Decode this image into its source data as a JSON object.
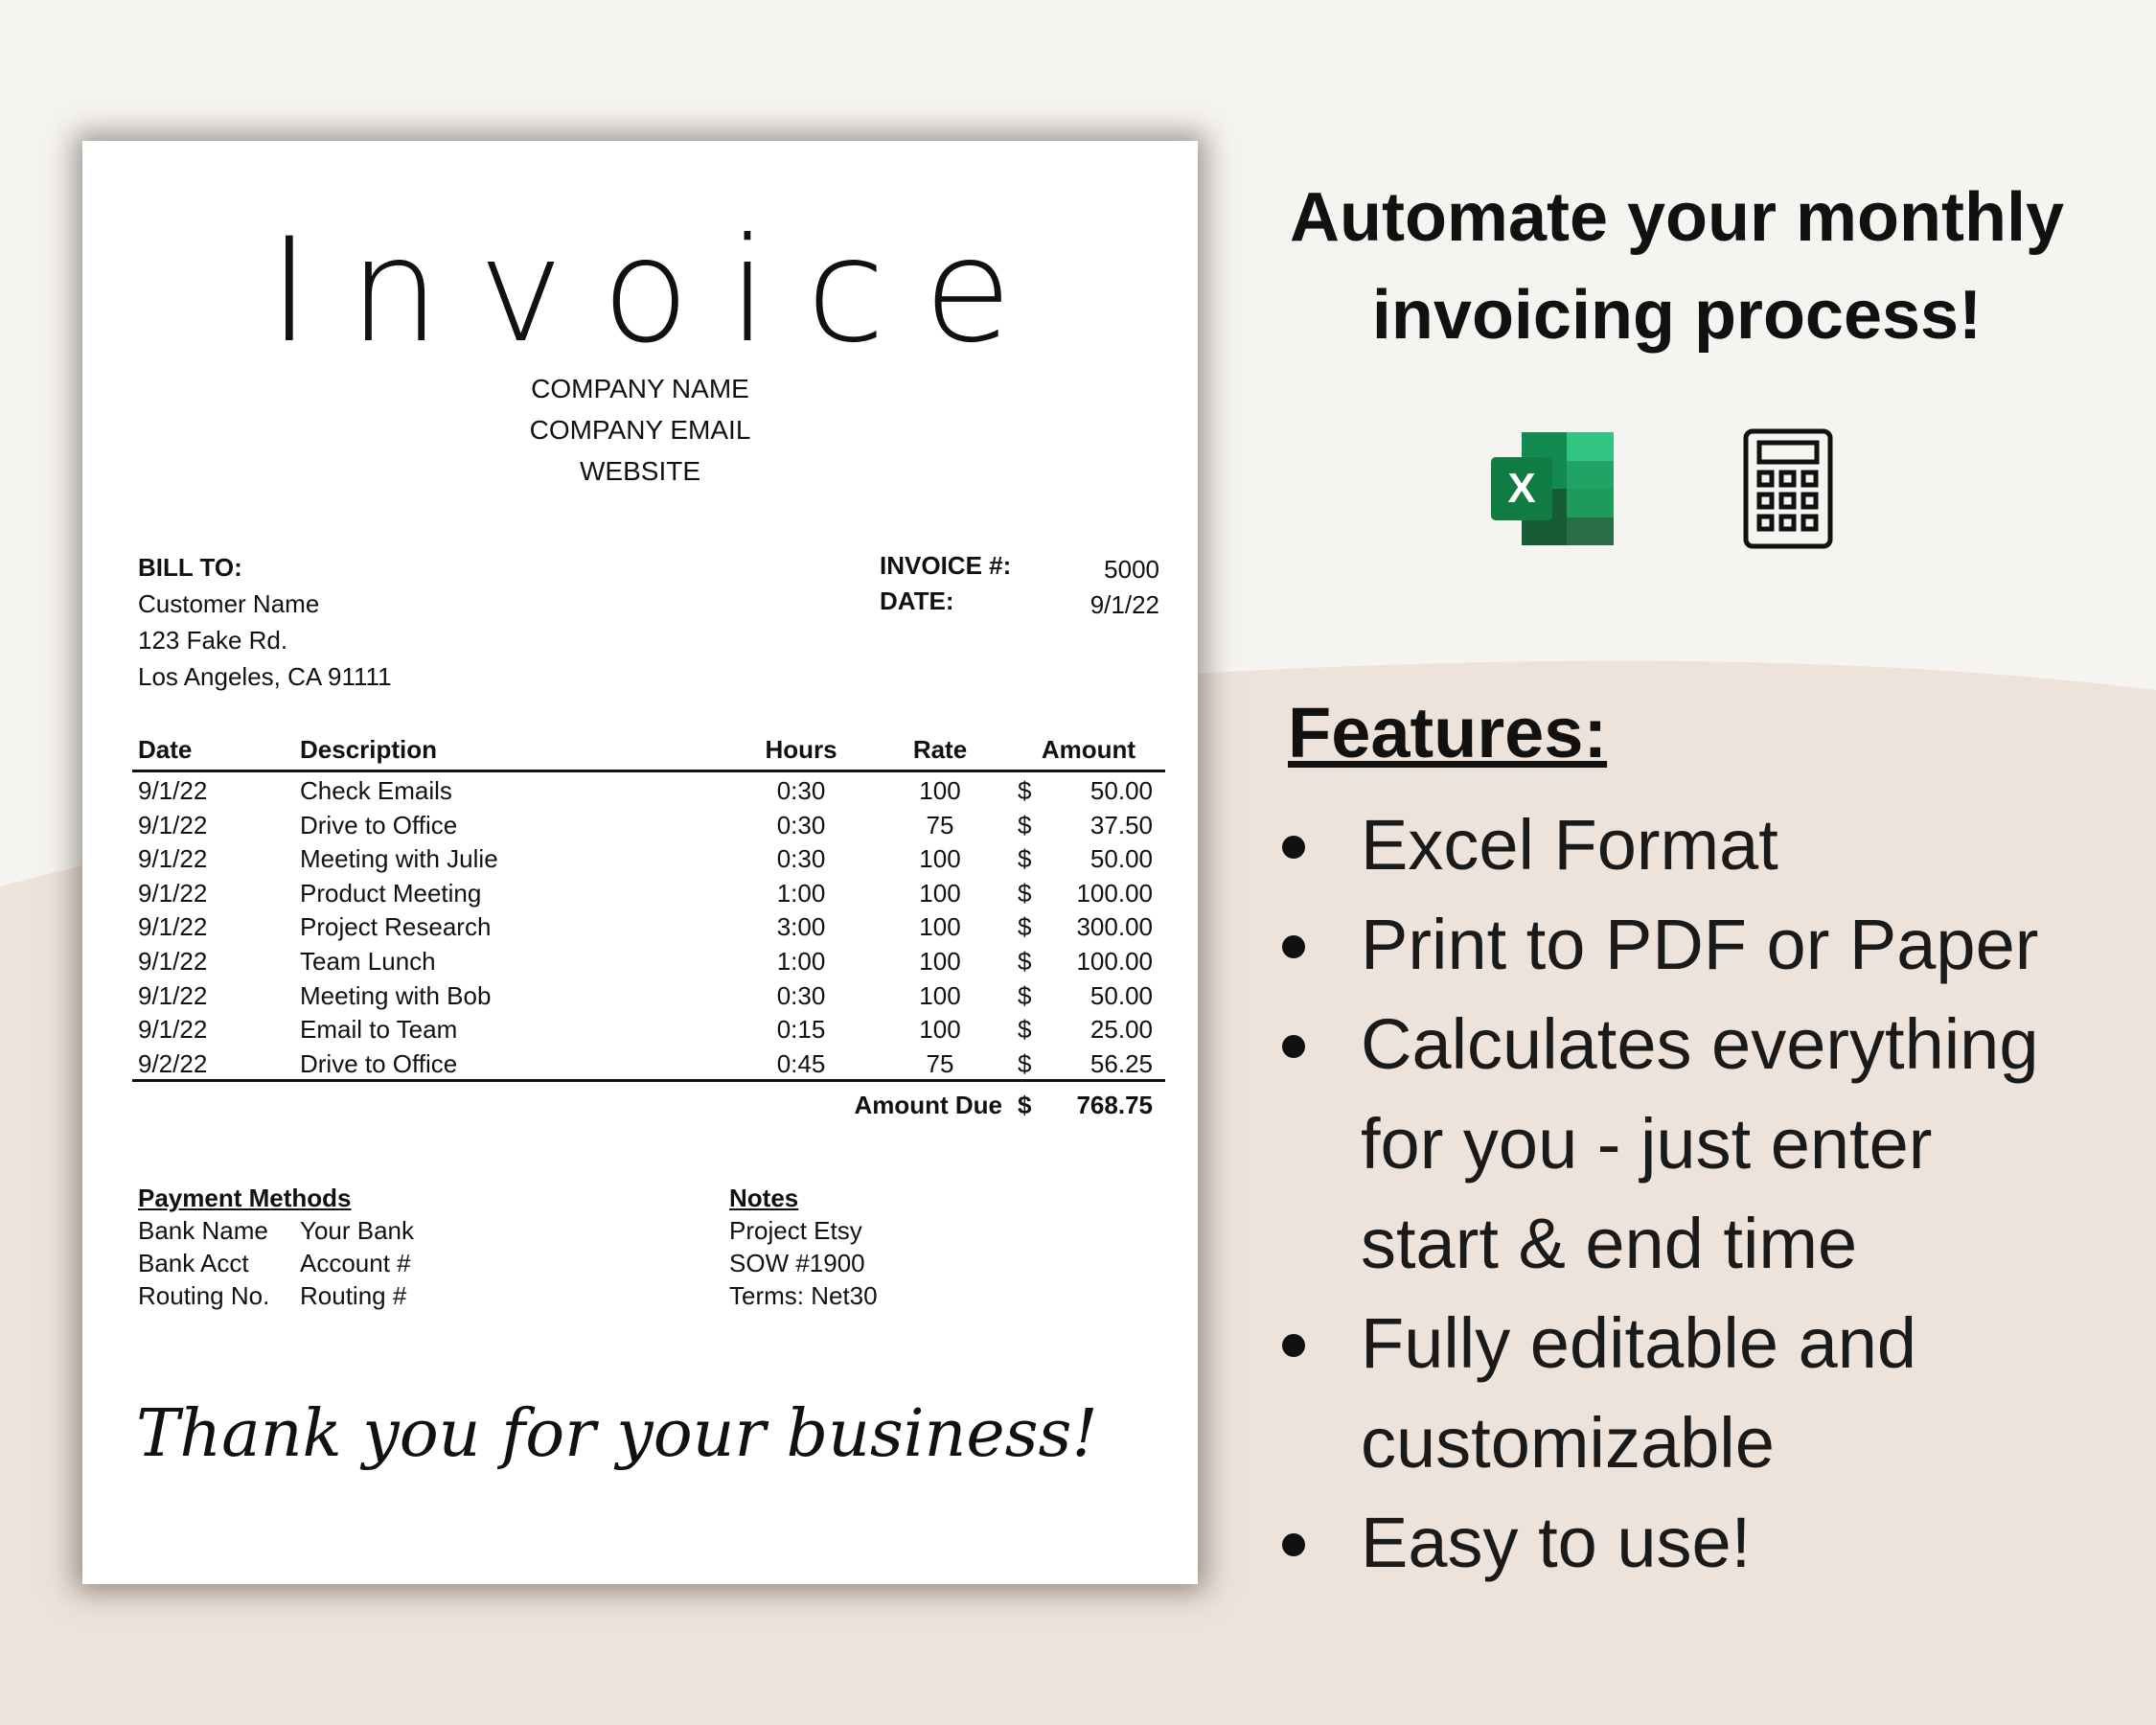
{
  "invoice": {
    "title": "Invoice",
    "company": [
      "COMPANY NAME",
      "COMPANY EMAIL",
      "WEBSITE"
    ],
    "bill_to_label": "BILL TO:",
    "bill_to": [
      "Customer Name",
      "123 Fake Rd.",
      "Los Angeles, CA 91111"
    ],
    "invoice_no_label": "INVOICE #:",
    "invoice_no": "5000",
    "date_label": "DATE:",
    "date": "9/1/22",
    "columns": [
      "Date",
      "Description",
      "Hours",
      "Rate",
      "Amount"
    ],
    "rows": [
      {
        "date": "9/1/22",
        "desc": "Check Emails",
        "hours": "0:30",
        "rate": "100",
        "cur": "$",
        "amount": "50.00"
      },
      {
        "date": "9/1/22",
        "desc": "Drive to Office",
        "hours": "0:30",
        "rate": "75",
        "cur": "$",
        "amount": "37.50"
      },
      {
        "date": "9/1/22",
        "desc": "Meeting with Julie",
        "hours": "0:30",
        "rate": "100",
        "cur": "$",
        "amount": "50.00"
      },
      {
        "date": "9/1/22",
        "desc": "Product Meeting",
        "hours": "1:00",
        "rate": "100",
        "cur": "$",
        "amount": "100.00"
      },
      {
        "date": "9/1/22",
        "desc": "Project Research",
        "hours": "3:00",
        "rate": "100",
        "cur": "$",
        "amount": "300.00"
      },
      {
        "date": "9/1/22",
        "desc": "Team Lunch",
        "hours": "1:00",
        "rate": "100",
        "cur": "$",
        "amount": "100.00"
      },
      {
        "date": "9/1/22",
        "desc": "Meeting with Bob",
        "hours": "0:30",
        "rate": "100",
        "cur": "$",
        "amount": "50.00"
      },
      {
        "date": "9/1/22",
        "desc": "Email to Team",
        "hours": "0:15",
        "rate": "100",
        "cur": "$",
        "amount": "25.00"
      },
      {
        "date": "9/2/22",
        "desc": "Drive to Office",
        "hours": "0:45",
        "rate": "75",
        "cur": "$",
        "amount": "56.25"
      }
    ],
    "amount_due_label": "Amount Due",
    "amount_due_cur": "$",
    "amount_due": "768.75",
    "payment_title": "Payment Methods",
    "payment": [
      [
        "Bank Name",
        "Your Bank"
      ],
      [
        "Bank Acct",
        "Account #"
      ],
      [
        "Routing No.",
        "Routing #"
      ]
    ],
    "notes_title": "Notes",
    "notes": [
      "Project Etsy",
      "SOW #1900",
      "Terms: Net30"
    ],
    "thanks": "Thank you for your business!"
  },
  "promo": {
    "headline": [
      "Automate your monthly",
      "invoicing process!"
    ],
    "icons": [
      "excel-icon",
      "calculator-icon"
    ],
    "features_title": "Features:",
    "features": [
      [
        "Excel Format"
      ],
      [
        "Print to PDF or Paper"
      ],
      [
        "Calculates everything",
        "for you - just enter",
        "start & end time"
      ],
      [
        "Fully editable and",
        "customizable"
      ],
      [
        "Easy to use!"
      ]
    ]
  },
  "colors": {
    "background": "#f6f4f1",
    "wave": "#ede3da",
    "excel_green": "#107c41"
  }
}
